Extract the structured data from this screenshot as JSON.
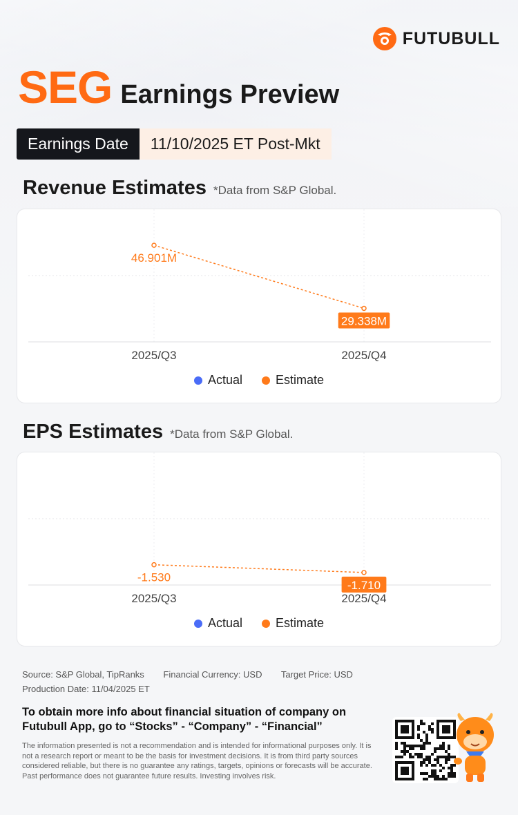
{
  "brand": {
    "name": "FUTUBULL"
  },
  "header": {
    "ticker": "SEG",
    "title": "Earnings Preview"
  },
  "earnings_date": {
    "label": "Earnings Date",
    "value": "11/10/2025 ET Post-Mkt"
  },
  "colors": {
    "accent": "#ff6a13",
    "actual": "#4a6cf7",
    "estimate": "#ff7a1a"
  },
  "revenue": {
    "title": "Revenue Estimates",
    "source": "*Data from S&P Global."
  },
  "eps": {
    "title": "EPS Estimates",
    "source": "*Data from S&P Global."
  },
  "legend": {
    "actual": "Actual",
    "estimate": "Estimate"
  },
  "chart_data": [
    {
      "type": "line",
      "title": "Revenue Estimates",
      "categories": [
        "2025/Q3",
        "2025/Q4"
      ],
      "series": [
        {
          "name": "Actual",
          "values": [
            null,
            null
          ]
        },
        {
          "name": "Estimate",
          "values": [
            46.901,
            29.338
          ],
          "labels": [
            "46.901M",
            "29.338M"
          ]
        }
      ],
      "unit": "M",
      "ylim": [
        20,
        50
      ]
    },
    {
      "type": "line",
      "title": "EPS Estimates",
      "categories": [
        "2025/Q3",
        "2025/Q4"
      ],
      "series": [
        {
          "name": "Actual",
          "values": [
            null,
            null
          ]
        },
        {
          "name": "Estimate",
          "values": [
            -1.53,
            -1.71
          ],
          "labels": [
            "-1.530",
            "-1.710"
          ]
        }
      ],
      "ylim": [
        -2.0,
        0.5
      ]
    }
  ],
  "footer": {
    "source": "Source: S&P Global, TipRanks",
    "currency": "Financial Currency: USD",
    "target": "Target Price: USD",
    "production": "Production Date: 11/04/2025 ET",
    "cta": "To obtain more info about financial situation of company on Futubull App, go to “Stocks” - “Company” - “Financial”",
    "disclaimer": "The information presented is not a recommendation and is intended for informational purposes only. It is not a research report or meant to be the basis for investment decisions. It is from third party sources considered reliable, but there is no guarantee any ratings, targets, opinions or forecasts will be accurate. Past performance does not guarantee future results. Investing involves risk."
  }
}
